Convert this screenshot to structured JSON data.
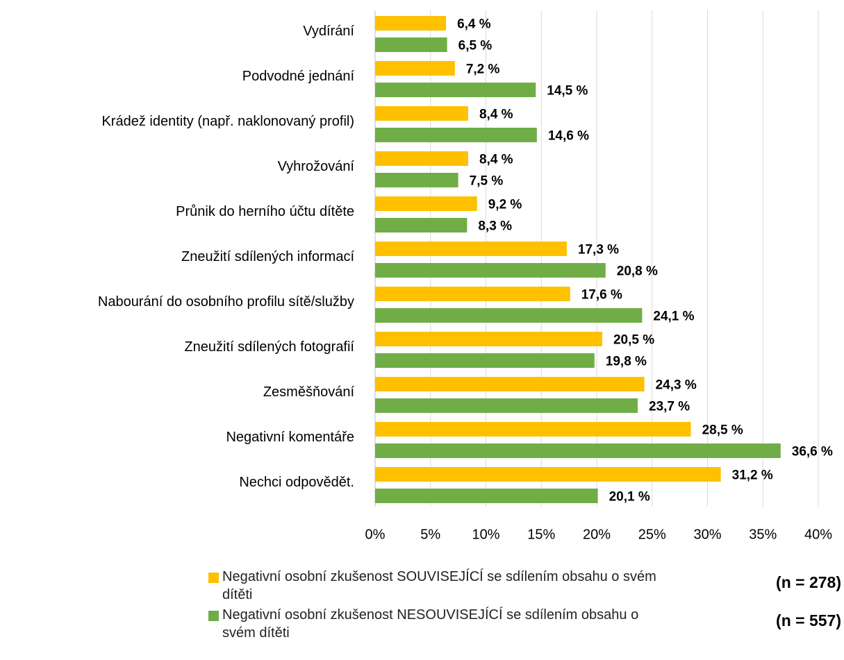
{
  "chart_data": {
    "type": "bar",
    "orientation": "horizontal",
    "categories": [
      "Vydírání",
      "Podvodné jednání",
      "Krádež identity (např. naklonovaný profil)",
      "Vyhrožování",
      "Průnik do herního účtu dítěte",
      "Zneužití sdílených informací",
      "Nabourání do osobního profilu sítě/služby",
      "Zneužití sdílených fotografií",
      "Zesměšňování",
      "Negativní komentáře",
      "Nechci odpovědět."
    ],
    "series": [
      {
        "name": "Negativní osobní zkušenost SOUVISEJÍCÍ se sdílením obsahu o svém dítěti",
        "sample": "(n = 278)",
        "color": "#ffc000",
        "values": [
          6.4,
          7.2,
          8.4,
          8.4,
          9.2,
          17.3,
          17.6,
          20.5,
          24.3,
          28.5,
          31.2
        ],
        "value_labels": [
          "6,4 %",
          "7,2 %",
          "8,4 %",
          "8,4 %",
          "9,2 %",
          "17,3 %",
          "17,6 %",
          "20,5 %",
          "24,3 %",
          "28,5 %",
          "31,2 %"
        ]
      },
      {
        "name": "Negativní osobní zkušenost NESOUVISEJÍCÍ se sdílením obsahu o svém dítěti",
        "sample": "(n = 557)",
        "color": "#70ad47",
        "values": [
          6.5,
          14.5,
          14.6,
          7.5,
          8.3,
          20.8,
          24.1,
          19.8,
          23.7,
          36.6,
          20.1
        ],
        "value_labels": [
          "6,5 %",
          "14,5 %",
          "14,6 %",
          "7,5 %",
          "8,3 %",
          "20,8 %",
          "24,1 %",
          "19,8 %",
          "23,7 %",
          "36,6 %",
          "20,1 %"
        ]
      }
    ],
    "xlim": [
      0,
      40
    ],
    "xticks": [
      {
        "value": 0,
        "label": "0%"
      },
      {
        "value": 5,
        "label": "5%"
      },
      {
        "value": 10,
        "label": "10%"
      },
      {
        "value": 15,
        "label": "15%"
      },
      {
        "value": 20,
        "label": "20%"
      },
      {
        "value": 25,
        "label": "25%"
      },
      {
        "value": 30,
        "label": "30%"
      },
      {
        "value": 35,
        "label": "35%"
      },
      {
        "value": 40,
        "label": "40%"
      }
    ],
    "grid": true
  }
}
